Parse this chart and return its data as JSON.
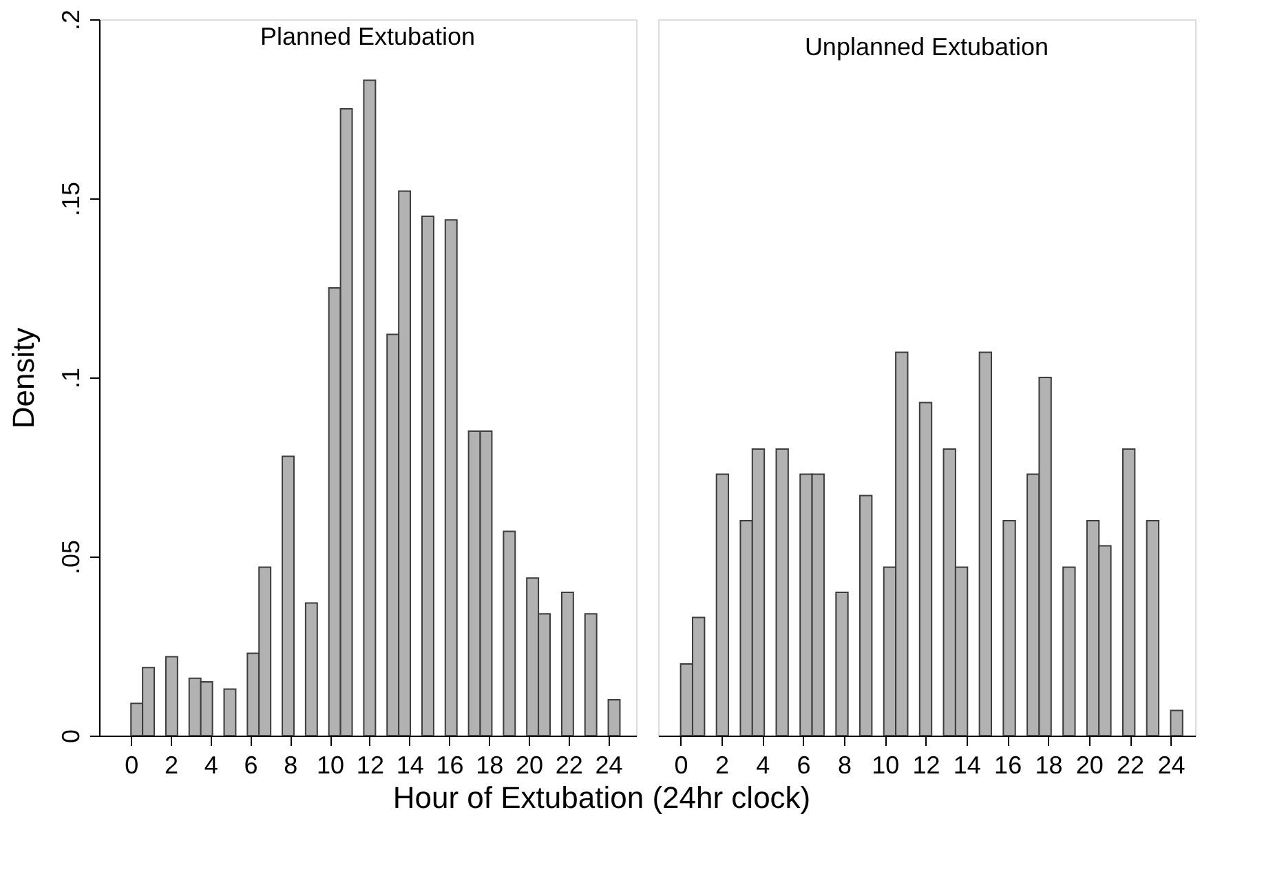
{
  "chart_data": [
    {
      "type": "histogram",
      "title": "Planned Extubation",
      "xlabel": "Hour of Extubation (24hr clock)",
      "ylabel": "Density",
      "color": "#b2b2b2",
      "bins": [
        0,
        0.585,
        1.171,
        1.756,
        2.341,
        2.927,
        3.512,
        4.098,
        4.683,
        5.268,
        5.854,
        6.439,
        7.024,
        7.61,
        8.195,
        8.78,
        9.366,
        9.951,
        10.537,
        11.122,
        11.707,
        12.293,
        12.878,
        13.463,
        14.049,
        14.634,
        15.22,
        15.805,
        16.39,
        16.976,
        17.561,
        18.146,
        18.732,
        19.317,
        19.902,
        20.488,
        21.073,
        21.659,
        22.244,
        22.829,
        23.415,
        24.0,
        24.585
      ],
      "values": [
        0.009,
        0.019,
        0,
        0.022,
        0,
        0.016,
        0.015,
        0,
        0.013,
        0,
        0.023,
        0.047,
        0,
        0.078,
        0,
        0.037,
        0,
        0.125,
        0.175,
        0,
        0.183,
        0,
        0.112,
        0.152,
        0,
        0.145,
        0,
        0.144,
        0,
        0.085,
        0.085,
        0,
        0.057,
        0,
        0.044,
        0.034,
        0,
        0.04,
        0,
        0.034,
        0,
        0.01
      ],
      "xlim": [
        -1.6,
        25.4
      ],
      "xticks": [
        0,
        2,
        4,
        6,
        8,
        10,
        12,
        14,
        16,
        18,
        20,
        22,
        24
      ],
      "ylim": [
        0,
        0.2
      ],
      "yticks": [
        0,
        {
          "value": 0.05,
          "label": ".05"
        },
        {
          "value": 0.1,
          "label": ".1"
        },
        {
          "value": 0.15,
          "label": ".15"
        },
        {
          "value": 0.2,
          "label": ".2"
        }
      ],
      "grid": false
    },
    {
      "type": "histogram",
      "title": "Unplanned Extubation",
      "color": "#b2b2b2",
      "bins": [
        0,
        0.585,
        1.171,
        1.756,
        2.341,
        2.927,
        3.512,
        4.098,
        4.683,
        5.268,
        5.854,
        6.439,
        7.024,
        7.61,
        8.195,
        8.78,
        9.366,
        9.951,
        10.537,
        11.122,
        11.707,
        12.293,
        12.878,
        13.463,
        14.049,
        14.634,
        15.22,
        15.805,
        16.39,
        16.976,
        17.561,
        18.146,
        18.732,
        19.317,
        19.902,
        20.488,
        21.073,
        21.659,
        22.244,
        22.829,
        23.415,
        24.0,
        24.585
      ],
      "values": [
        0.02,
        0.033,
        0,
        0.073,
        0,
        0.06,
        0.08,
        0,
        0.08,
        0,
        0.073,
        0.073,
        0,
        0.04,
        0,
        0.067,
        0,
        0.047,
        0.107,
        0,
        0.093,
        0,
        0.08,
        0.047,
        0,
        0.107,
        0,
        0.06,
        0,
        0.073,
        0.1,
        0,
        0.047,
        0,
        0.06,
        0.053,
        0,
        0.08,
        0,
        0.06,
        0,
        0.007
      ],
      "xlim": [
        -1.1,
        25.2
      ],
      "xticks": [
        0,
        2,
        4,
        6,
        8,
        10,
        12,
        14,
        16,
        18,
        20,
        22,
        24
      ],
      "ylim": [
        0,
        0.2
      ],
      "tick_labels": "x",
      "grid": false
    }
  ]
}
